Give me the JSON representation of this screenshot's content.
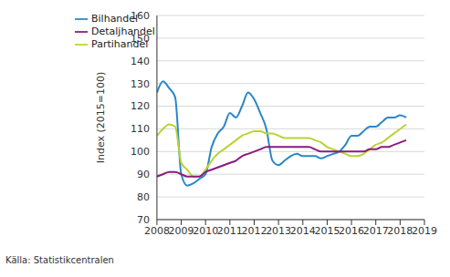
{
  "chart_data": {
    "type": "line",
    "y_label": "Index (2015=100)",
    "source": "Källa: Statistikcentralen",
    "x": [
      2008,
      2008.25,
      2008.5,
      2008.75,
      2009,
      2009.25,
      2009.5,
      2009.75,
      2010,
      2010.25,
      2010.5,
      2010.75,
      2011,
      2011.25,
      2011.5,
      2011.75,
      2012,
      2012.25,
      2012.5,
      2012.75,
      2013,
      2013.25,
      2013.5,
      2013.75,
      2014,
      2014.25,
      2014.5,
      2014.75,
      2015,
      2015.25,
      2015.5,
      2015.75,
      2016,
      2016.25,
      2016.5,
      2016.75,
      2017,
      2017.25,
      2017.5,
      2017.75,
      2018,
      2018.25
    ],
    "series": [
      {
        "name": "Bilhandel",
        "color": "#2a86c9",
        "values": [
          126,
          131,
          128,
          124,
          90,
          85,
          86,
          88,
          90,
          102,
          108,
          111,
          117,
          115,
          120,
          126,
          123,
          117,
          110,
          96,
          94,
          96,
          98,
          99,
          98,
          98,
          98,
          97,
          98,
          99,
          100,
          103,
          107,
          107,
          109,
          111,
          111,
          113,
          115,
          115,
          116,
          115
        ]
      },
      {
        "name": "Partihandel",
        "color": "#b8d432",
        "values": [
          107,
          110,
          112,
          111,
          95,
          92,
          89,
          89,
          92,
          96,
          99,
          101,
          103,
          105,
          107,
          108,
          109,
          109,
          108,
          108,
          107,
          106,
          106,
          106,
          106,
          106,
          105,
          104,
          102,
          101,
          100,
          99,
          98,
          98,
          99,
          101,
          103,
          104,
          106,
          108,
          110,
          112
        ]
      },
      {
        "name": "Detaljhandel",
        "color": "#8c1a7e",
        "values": [
          89,
          90,
          91,
          91,
          90,
          89,
          89,
          89,
          91,
          92,
          93,
          94,
          95,
          96,
          98,
          99,
          100,
          101,
          102,
          102,
          102,
          102,
          102,
          102,
          102,
          102,
          101,
          100,
          100,
          100,
          100,
          100,
          100,
          100,
          100,
          101,
          101,
          102,
          102,
          103,
          104,
          105
        ]
      }
    ],
    "xlim": [
      2008,
      2019
    ],
    "xticks": [
      2008,
      2009,
      2010,
      2011,
      2012,
      2013,
      2014,
      2015,
      2016,
      2017,
      2018,
      2019
    ],
    "ylim": [
      70,
      160
    ],
    "yticks": [
      70,
      80,
      90,
      100,
      110,
      120,
      130,
      140,
      150,
      160
    ],
    "grid": true,
    "legend": "upper left"
  }
}
